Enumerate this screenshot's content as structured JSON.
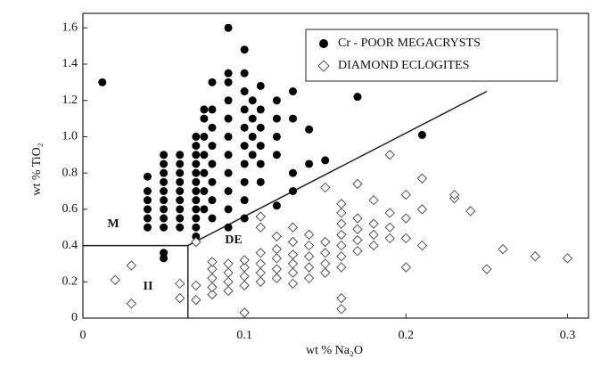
{
  "chart_data": {
    "type": "scatter",
    "xlabel": "wt % Na₂O",
    "ylabel": "wt % TiO₂",
    "xlim": [
      0,
      0.313
    ],
    "ylim": [
      0,
      1.68
    ],
    "xticks": [
      0,
      0.1,
      0.2,
      0.3
    ],
    "yticks": [
      0,
      0.2,
      0.4,
      0.6,
      0.8,
      {
        "value": 1,
        "label": "1.0"
      },
      1.2,
      1.4,
      1.6
    ],
    "legend": "upper right",
    "series": [
      {
        "name": "Cr - POOR MEGACRYSTS",
        "color": "#000000",
        "marker": "circle",
        "x": [
          0.012,
          0.04,
          0.04,
          0.04,
          0.04,
          0.04,
          0.04,
          0.05,
          0.05,
          0.05,
          0.05,
          0.05,
          0.05,
          0.05,
          0.05,
          0.05,
          0.05,
          0.05,
          0.06,
          0.06,
          0.06,
          0.06,
          0.06,
          0.06,
          0.06,
          0.06,
          0.06,
          0.07,
          0.07,
          0.07,
          0.07,
          0.07,
          0.07,
          0.07,
          0.07,
          0.07,
          0.07,
          0.07,
          0.07,
          0.075,
          0.075,
          0.075,
          0.075,
          0.075,
          0.075,
          0.075,
          0.08,
          0.08,
          0.08,
          0.08,
          0.08,
          0.08,
          0.08,
          0.08,
          0.09,
          0.09,
          0.09,
          0.09,
          0.09,
          0.09,
          0.09,
          0.09,
          0.09,
          0.09,
          0.09,
          0.1,
          0.1,
          0.1,
          0.1,
          0.1,
          0.1,
          0.1,
          0.1,
          0.1,
          0.1,
          0.105,
          0.105,
          0.105,
          0.105,
          0.11,
          0.11,
          0.11,
          0.11,
          0.11,
          0.11,
          0.12,
          0.12,
          0.12,
          0.12,
          0.12,
          0.13,
          0.13,
          0.13,
          0.13,
          0.14,
          0.14,
          0.15,
          0.17,
          0.21
        ],
        "values": [
          1.3,
          0.5,
          0.55,
          0.6,
          0.65,
          0.7,
          0.78,
          0.33,
          0.36,
          0.5,
          0.55,
          0.6,
          0.65,
          0.7,
          0.75,
          0.8,
          0.85,
          0.9,
          0.5,
          0.55,
          0.6,
          0.65,
          0.7,
          0.75,
          0.8,
          0.85,
          0.9,
          0.45,
          0.5,
          0.55,
          0.6,
          0.65,
          0.7,
          0.75,
          0.8,
          0.85,
          0.9,
          0.95,
          1.0,
          0.6,
          0.7,
          0.8,
          0.9,
          1.0,
          1.1,
          1.15,
          0.55,
          0.65,
          0.75,
          0.85,
          0.95,
          1.05,
          1.15,
          1.3,
          0.5,
          0.6,
          0.7,
          0.8,
          0.9,
          1.0,
          1.1,
          1.2,
          1.3,
          1.35,
          1.6,
          0.55,
          0.65,
          0.75,
          0.85,
          0.95,
          1.05,
          1.15,
          1.25,
          1.35,
          1.48,
          0.9,
          1.0,
          1.1,
          1.2,
          0.75,
          0.85,
          0.95,
          1.05,
          1.15,
          1.28,
          0.62,
          0.9,
          1.0,
          1.1,
          1.2,
          0.7,
          0.8,
          1.1,
          1.25,
          0.85,
          1.04,
          0.87,
          1.22,
          1.01
        ]
      },
      {
        "name": "DIAMOND ECLOGITES",
        "color": "#555555",
        "marker": "diamond",
        "x": [
          0.02,
          0.03,
          0.03,
          0.06,
          0.06,
          0.07,
          0.07,
          0.07,
          0.08,
          0.08,
          0.08,
          0.08,
          0.08,
          0.09,
          0.09,
          0.09,
          0.09,
          0.1,
          0.1,
          0.1,
          0.1,
          0.1,
          0.11,
          0.11,
          0.11,
          0.11,
          0.11,
          0.11,
          0.12,
          0.12,
          0.12,
          0.12,
          0.12,
          0.13,
          0.13,
          0.13,
          0.13,
          0.13,
          0.13,
          0.14,
          0.14,
          0.14,
          0.14,
          0.14,
          0.15,
          0.15,
          0.15,
          0.15,
          0.15,
          0.16,
          0.16,
          0.16,
          0.16,
          0.16,
          0.16,
          0.16,
          0.16,
          0.16,
          0.17,
          0.17,
          0.17,
          0.17,
          0.17,
          0.18,
          0.18,
          0.18,
          0.18,
          0.19,
          0.19,
          0.19,
          0.19,
          0.2,
          0.2,
          0.2,
          0.2,
          0.21,
          0.21,
          0.21,
          0.23,
          0.23,
          0.24,
          0.25,
          0.26,
          0.28,
          0.3
        ],
        "values": [
          0.21,
          0.29,
          0.08,
          0.19,
          0.11,
          0.1,
          0.18,
          0.42,
          0.13,
          0.17,
          0.22,
          0.27,
          0.31,
          0.15,
          0.2,
          0.25,
          0.3,
          0.03,
          0.18,
          0.23,
          0.28,
          0.32,
          0.2,
          0.25,
          0.3,
          0.36,
          0.5,
          0.56,
          0.22,
          0.27,
          0.33,
          0.38,
          0.45,
          0.19,
          0.25,
          0.3,
          0.35,
          0.42,
          0.5,
          0.22,
          0.28,
          0.34,
          0.4,
          0.46,
          0.25,
          0.3,
          0.36,
          0.42,
          0.72,
          0.05,
          0.11,
          0.28,
          0.34,
          0.4,
          0.46,
          0.52,
          0.58,
          0.63,
          0.37,
          0.43,
          0.49,
          0.55,
          0.74,
          0.4,
          0.46,
          0.52,
          0.65,
          0.44,
          0.5,
          0.58,
          0.9,
          0.28,
          0.44,
          0.55,
          0.68,
          0.4,
          0.6,
          0.77,
          0.66,
          0.68,
          0.59,
          0.27,
          0.38,
          0.34,
          0.33
        ]
      }
    ],
    "boundaries": [
      {
        "x": [
          0,
          0.065,
          0.065
        ],
        "values": [
          0.4,
          0.4,
          0
        ]
      },
      {
        "x": [
          0.065,
          0.25
        ],
        "values": [
          0.4,
          1.25
        ]
      }
    ],
    "annotations": [
      "M",
      "II",
      "DE"
    ]
  }
}
